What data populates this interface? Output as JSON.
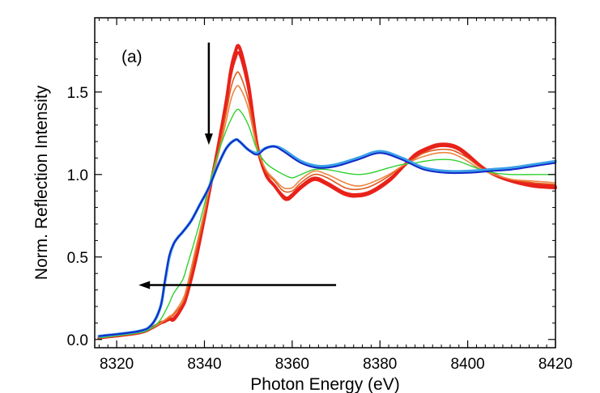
{
  "chart_data": {
    "type": "line",
    "panel_label": "(a)",
    "xlabel": "Photon Energy (eV)",
    "ylabel": "Norm. Reflection Intensity",
    "xlim": [
      8315,
      8420
    ],
    "ylim": [
      -0.05,
      1.95
    ],
    "x_ticks": [
      8320,
      8340,
      8360,
      8380,
      8400,
      8420
    ],
    "y_ticks": [
      0.0,
      0.5,
      1.0,
      1.5
    ],
    "y_tick_labels": [
      "0.0",
      "0.5",
      "1.0",
      "1.5"
    ],
    "grid": false,
    "legend": "none",
    "colors": {
      "red": "#e8221a",
      "orange": "#e05a1e",
      "orange_light": "#ee8540",
      "green": "#2fd12f",
      "light_blue": "#3aa0e8",
      "blue": "#1428c8"
    },
    "series": [
      {
        "color": "#e8221a",
        "x": [
          8316,
          8325,
          8328,
          8330,
          8331,
          8332,
          8333,
          8335,
          8336,
          8338,
          8340,
          8341,
          8343,
          8345,
          8346,
          8347,
          8348,
          8350,
          8352,
          8354,
          8356,
          8358,
          8359,
          8360,
          8362,
          8365,
          8368,
          8372,
          8375,
          8378,
          8382,
          8385,
          8388,
          8390,
          8393,
          8396,
          8398,
          8400,
          8403,
          8406,
          8410,
          8415,
          8420
        ],
        "y": [
          0.01,
          0.04,
          0.07,
          0.1,
          0.11,
          0.13,
          0.12,
          0.2,
          0.27,
          0.48,
          0.74,
          0.88,
          1.15,
          1.45,
          1.63,
          1.74,
          1.77,
          1.55,
          1.18,
          1.0,
          0.93,
          0.86,
          0.85,
          0.87,
          0.92,
          0.97,
          0.94,
          0.88,
          0.87,
          0.89,
          0.96,
          1.04,
          1.12,
          1.15,
          1.18,
          1.18,
          1.16,
          1.12,
          1.05,
          1.0,
          0.96,
          0.93,
          0.92
        ]
      },
      {
        "color": "#e8221a",
        "x": [
          8316,
          8325,
          8328,
          8330,
          8331,
          8332,
          8333,
          8335,
          8336,
          8338,
          8340,
          8341,
          8343,
          8345,
          8346,
          8347,
          8348,
          8350,
          8352,
          8354,
          8356,
          8358,
          8359,
          8360,
          8362,
          8365,
          8368,
          8372,
          8375,
          8378,
          8382,
          8385,
          8388,
          8390,
          8393,
          8396,
          8398,
          8400,
          8403,
          8406,
          8410,
          8415,
          8420
        ],
        "y": [
          0.01,
          0.04,
          0.07,
          0.1,
          0.11,
          0.12,
          0.13,
          0.2,
          0.28,
          0.5,
          0.75,
          0.9,
          1.15,
          1.44,
          1.6,
          1.7,
          1.73,
          1.52,
          1.17,
          1.0,
          0.93,
          0.87,
          0.86,
          0.88,
          0.93,
          0.98,
          0.95,
          0.89,
          0.88,
          0.9,
          0.97,
          1.04,
          1.11,
          1.14,
          1.17,
          1.17,
          1.15,
          1.11,
          1.05,
          1.0,
          0.96,
          0.94,
          0.93
        ]
      },
      {
        "color": "#e05a1e",
        "x": [
          8316,
          8325,
          8328,
          8330,
          8332,
          8333,
          8335,
          8336,
          8338,
          8340,
          8341,
          8343,
          8345,
          8346,
          8347,
          8348,
          8350,
          8352,
          8354,
          8356,
          8358,
          8360,
          8362,
          8365,
          8368,
          8372,
          8375,
          8378,
          8382,
          8385,
          8388,
          8390,
          8393,
          8396,
          8398,
          8400,
          8403,
          8406,
          8410,
          8415,
          8420
        ],
        "y": [
          0.01,
          0.04,
          0.07,
          0.1,
          0.13,
          0.15,
          0.22,
          0.3,
          0.52,
          0.76,
          0.9,
          1.12,
          1.38,
          1.52,
          1.6,
          1.61,
          1.45,
          1.17,
          1.02,
          0.96,
          0.9,
          0.9,
          0.95,
          1.0,
          0.98,
          0.92,
          0.91,
          0.93,
          0.99,
          1.05,
          1.1,
          1.13,
          1.15,
          1.15,
          1.13,
          1.1,
          1.04,
          1.0,
          0.97,
          0.95,
          0.94
        ]
      },
      {
        "color": "#ee8540",
        "x": [
          8316,
          8325,
          8328,
          8330,
          8332,
          8333,
          8335,
          8336,
          8338,
          8340,
          8341,
          8343,
          8345,
          8346,
          8347,
          8348,
          8350,
          8352,
          8354,
          8356,
          8358,
          8360,
          8362,
          8365,
          8368,
          8372,
          8375,
          8378,
          8382,
          8385,
          8388,
          8390,
          8393,
          8396,
          8398,
          8400,
          8403,
          8406,
          8410,
          8415,
          8420
        ],
        "y": [
          0.01,
          0.04,
          0.07,
          0.1,
          0.14,
          0.16,
          0.24,
          0.32,
          0.55,
          0.78,
          0.9,
          1.1,
          1.33,
          1.45,
          1.52,
          1.53,
          1.4,
          1.16,
          1.03,
          0.97,
          0.92,
          0.92,
          0.97,
          1.02,
          1.0,
          0.95,
          0.93,
          0.95,
          1.0,
          1.05,
          1.09,
          1.11,
          1.13,
          1.13,
          1.11,
          1.08,
          1.03,
          1.0,
          0.97,
          0.96,
          0.95
        ]
      },
      {
        "color": "#2fd12f",
        "x": [
          8316,
          8325,
          8328,
          8330,
          8332,
          8333,
          8335,
          8336,
          8338,
          8340,
          8341,
          8343,
          8345,
          8346,
          8347,
          8348,
          8350,
          8352,
          8354,
          8356,
          8358,
          8360,
          8362,
          8365,
          8368,
          8372,
          8375,
          8378,
          8382,
          8385,
          8388,
          8390,
          8393,
          8396,
          8398,
          8400,
          8403,
          8406,
          8410,
          8415,
          8420
        ],
        "y": [
          0.01,
          0.04,
          0.07,
          0.12,
          0.22,
          0.28,
          0.36,
          0.44,
          0.62,
          0.82,
          0.93,
          1.12,
          1.27,
          1.33,
          1.38,
          1.39,
          1.3,
          1.15,
          1.07,
          1.03,
          1.0,
          0.98,
          1.0,
          1.03,
          1.03,
          1.01,
          1.0,
          1.01,
          1.04,
          1.06,
          1.07,
          1.08,
          1.09,
          1.09,
          1.08,
          1.06,
          1.03,
          1.01,
          1.0,
          1.0,
          1.0
        ]
      },
      {
        "color": "#3aa0e8",
        "x": [
          8316,
          8325,
          8328,
          8330,
          8331,
          8332,
          8333,
          8334,
          8335,
          8337,
          8339,
          8341,
          8343,
          8345,
          8347,
          8348,
          8350,
          8352,
          8354,
          8356,
          8358,
          8362,
          8366,
          8370,
          8375,
          8380,
          8385,
          8390,
          8395,
          8400,
          8405,
          8410,
          8415,
          8420
        ],
        "y": [
          0.02,
          0.05,
          0.09,
          0.2,
          0.35,
          0.5,
          0.58,
          0.62,
          0.65,
          0.72,
          0.82,
          0.92,
          1.05,
          1.16,
          1.21,
          1.2,
          1.15,
          1.13,
          1.16,
          1.17,
          1.15,
          1.08,
          1.05,
          1.06,
          1.1,
          1.14,
          1.1,
          1.04,
          1.02,
          1.02,
          1.03,
          1.04,
          1.06,
          1.08
        ]
      },
      {
        "color": "#1428c8",
        "x": [
          8316,
          8325,
          8328,
          8330,
          8331,
          8332,
          8333,
          8334,
          8335,
          8337,
          8339,
          8341,
          8343,
          8345,
          8347,
          8348,
          8350,
          8352,
          8354,
          8356,
          8358,
          8362,
          8366,
          8370,
          8375,
          8380,
          8385,
          8390,
          8395,
          8400,
          8405,
          8410,
          8415,
          8420
        ],
        "y": [
          0.02,
          0.05,
          0.09,
          0.2,
          0.36,
          0.51,
          0.58,
          0.62,
          0.65,
          0.72,
          0.82,
          0.92,
          1.05,
          1.16,
          1.21,
          1.2,
          1.15,
          1.12,
          1.16,
          1.17,
          1.14,
          1.07,
          1.04,
          1.05,
          1.09,
          1.13,
          1.09,
          1.03,
          1.01,
          1.01,
          1.02,
          1.03,
          1.05,
          1.07
        ]
      }
    ],
    "annotations": [
      {
        "type": "arrow",
        "direction": "down",
        "x": 8341,
        "y_from": 1.8,
        "y_to": 1.18
      },
      {
        "type": "arrow",
        "direction": "left",
        "y": 0.33,
        "x_from": 8370,
        "x_to": 8325
      }
    ]
  }
}
